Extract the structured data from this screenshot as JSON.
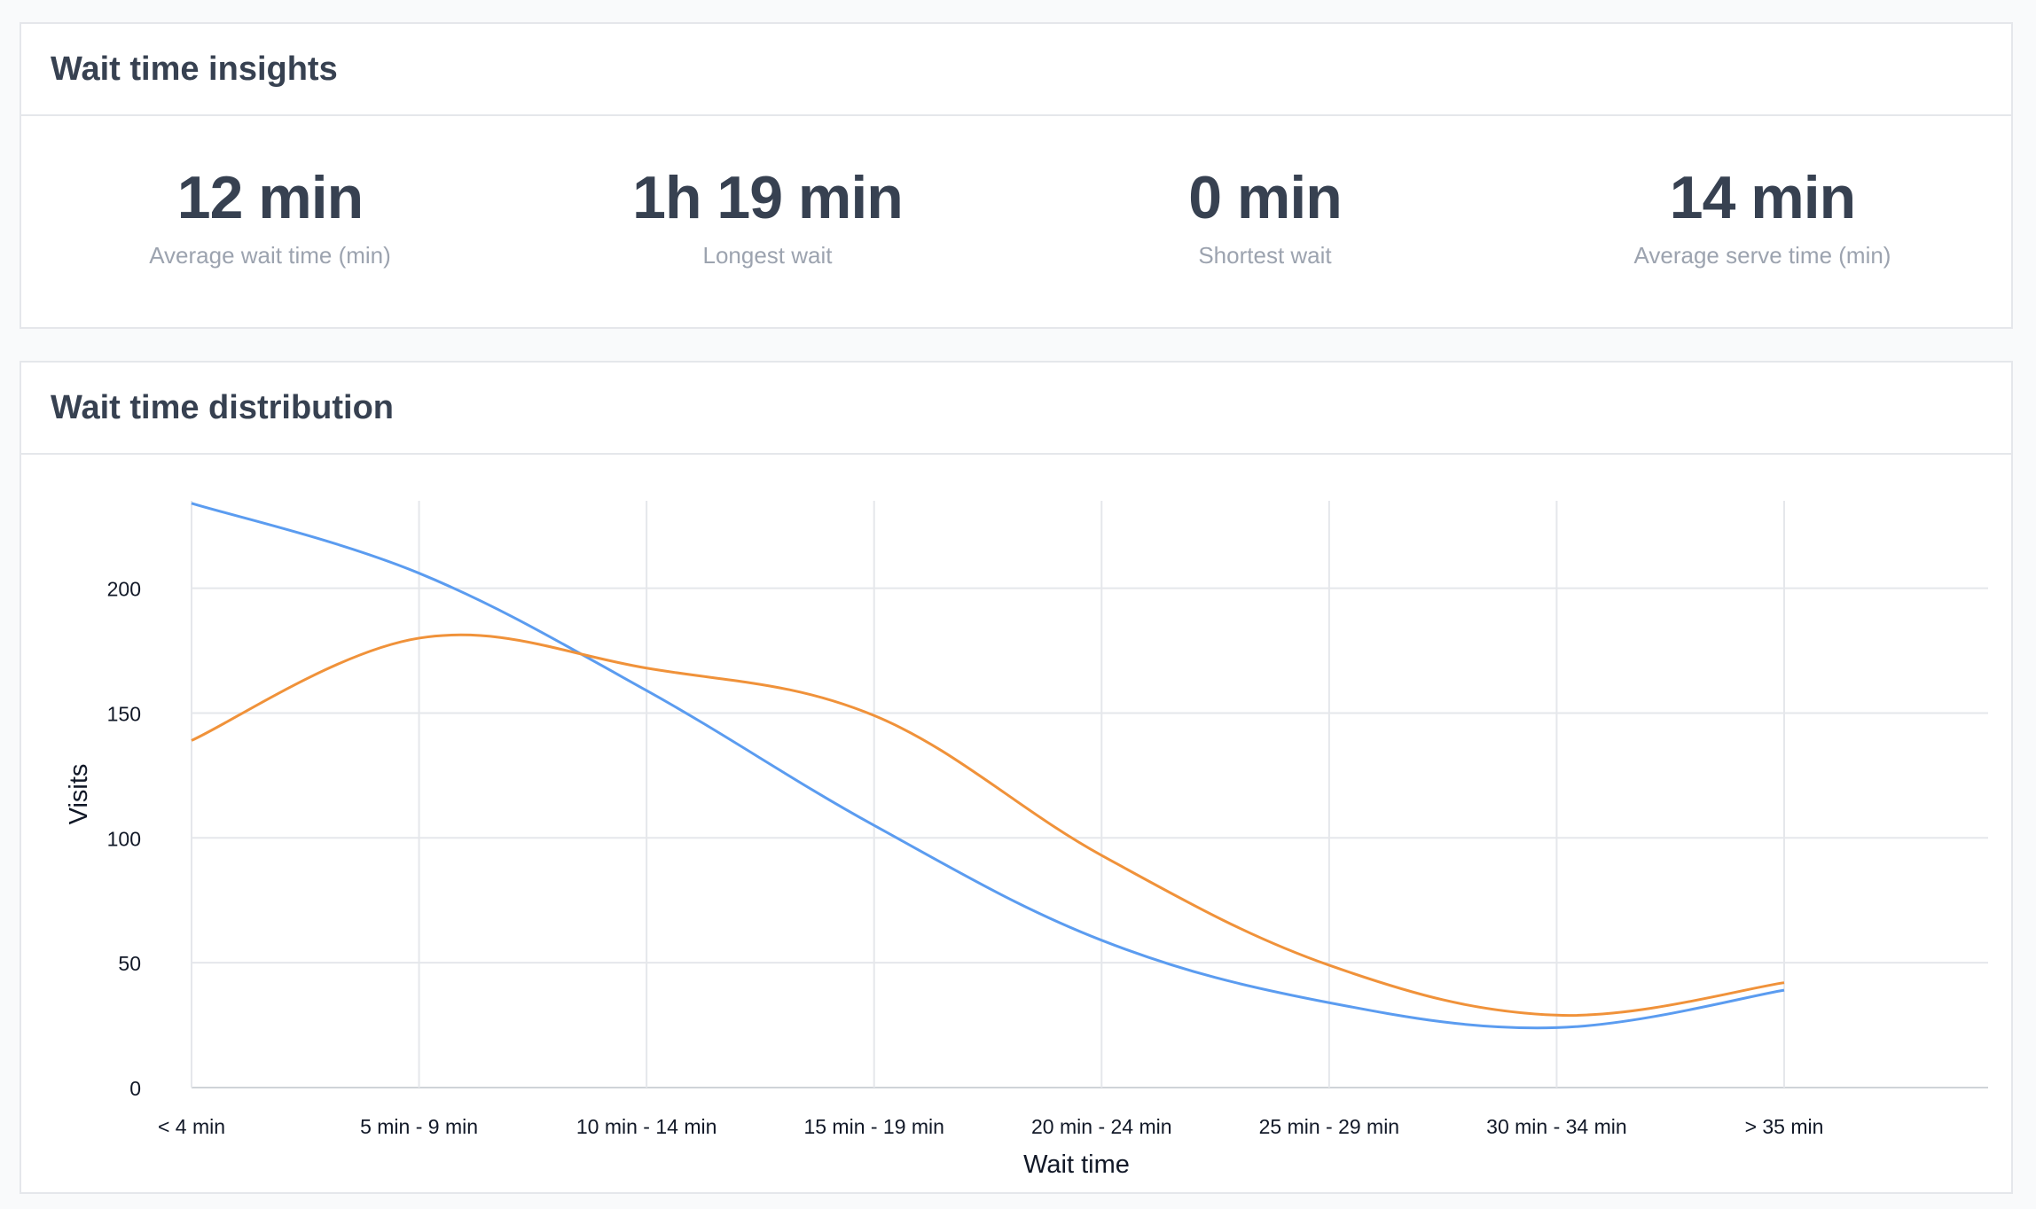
{
  "insights": {
    "title": "Wait time insights",
    "stats": [
      {
        "value": "12 min",
        "label": "Average wait time (min)"
      },
      {
        "value": "1h 19 min",
        "label": "Longest wait"
      },
      {
        "value": "0 min",
        "label": "Shortest wait"
      },
      {
        "value": "14 min",
        "label": "Average serve time (min)"
      }
    ]
  },
  "distribution": {
    "title": "Wait time distribution"
  },
  "chart_data": {
    "type": "line",
    "title": "",
    "xlabel": "Wait time",
    "ylabel": "Visits",
    "categories": [
      "< 4 min",
      "5 min - 9 min",
      "10 min - 14 min",
      "15 min - 19 min",
      "20 min - 24 min",
      "25 min - 29 min",
      "30 min - 34 min",
      "> 35 min"
    ],
    "yticks": [
      0,
      50,
      100,
      150,
      200
    ],
    "ylim": [
      0,
      235
    ],
    "grid": true,
    "smooth": true,
    "series": [
      {
        "color": "#5b9cf0",
        "values": [
          234,
          206,
          159,
          105,
          59,
          34,
          24,
          39
        ]
      },
      {
        "color": "#f0923a",
        "values": [
          139,
          180,
          168,
          149,
          93,
          49,
          29,
          42
        ]
      }
    ]
  }
}
